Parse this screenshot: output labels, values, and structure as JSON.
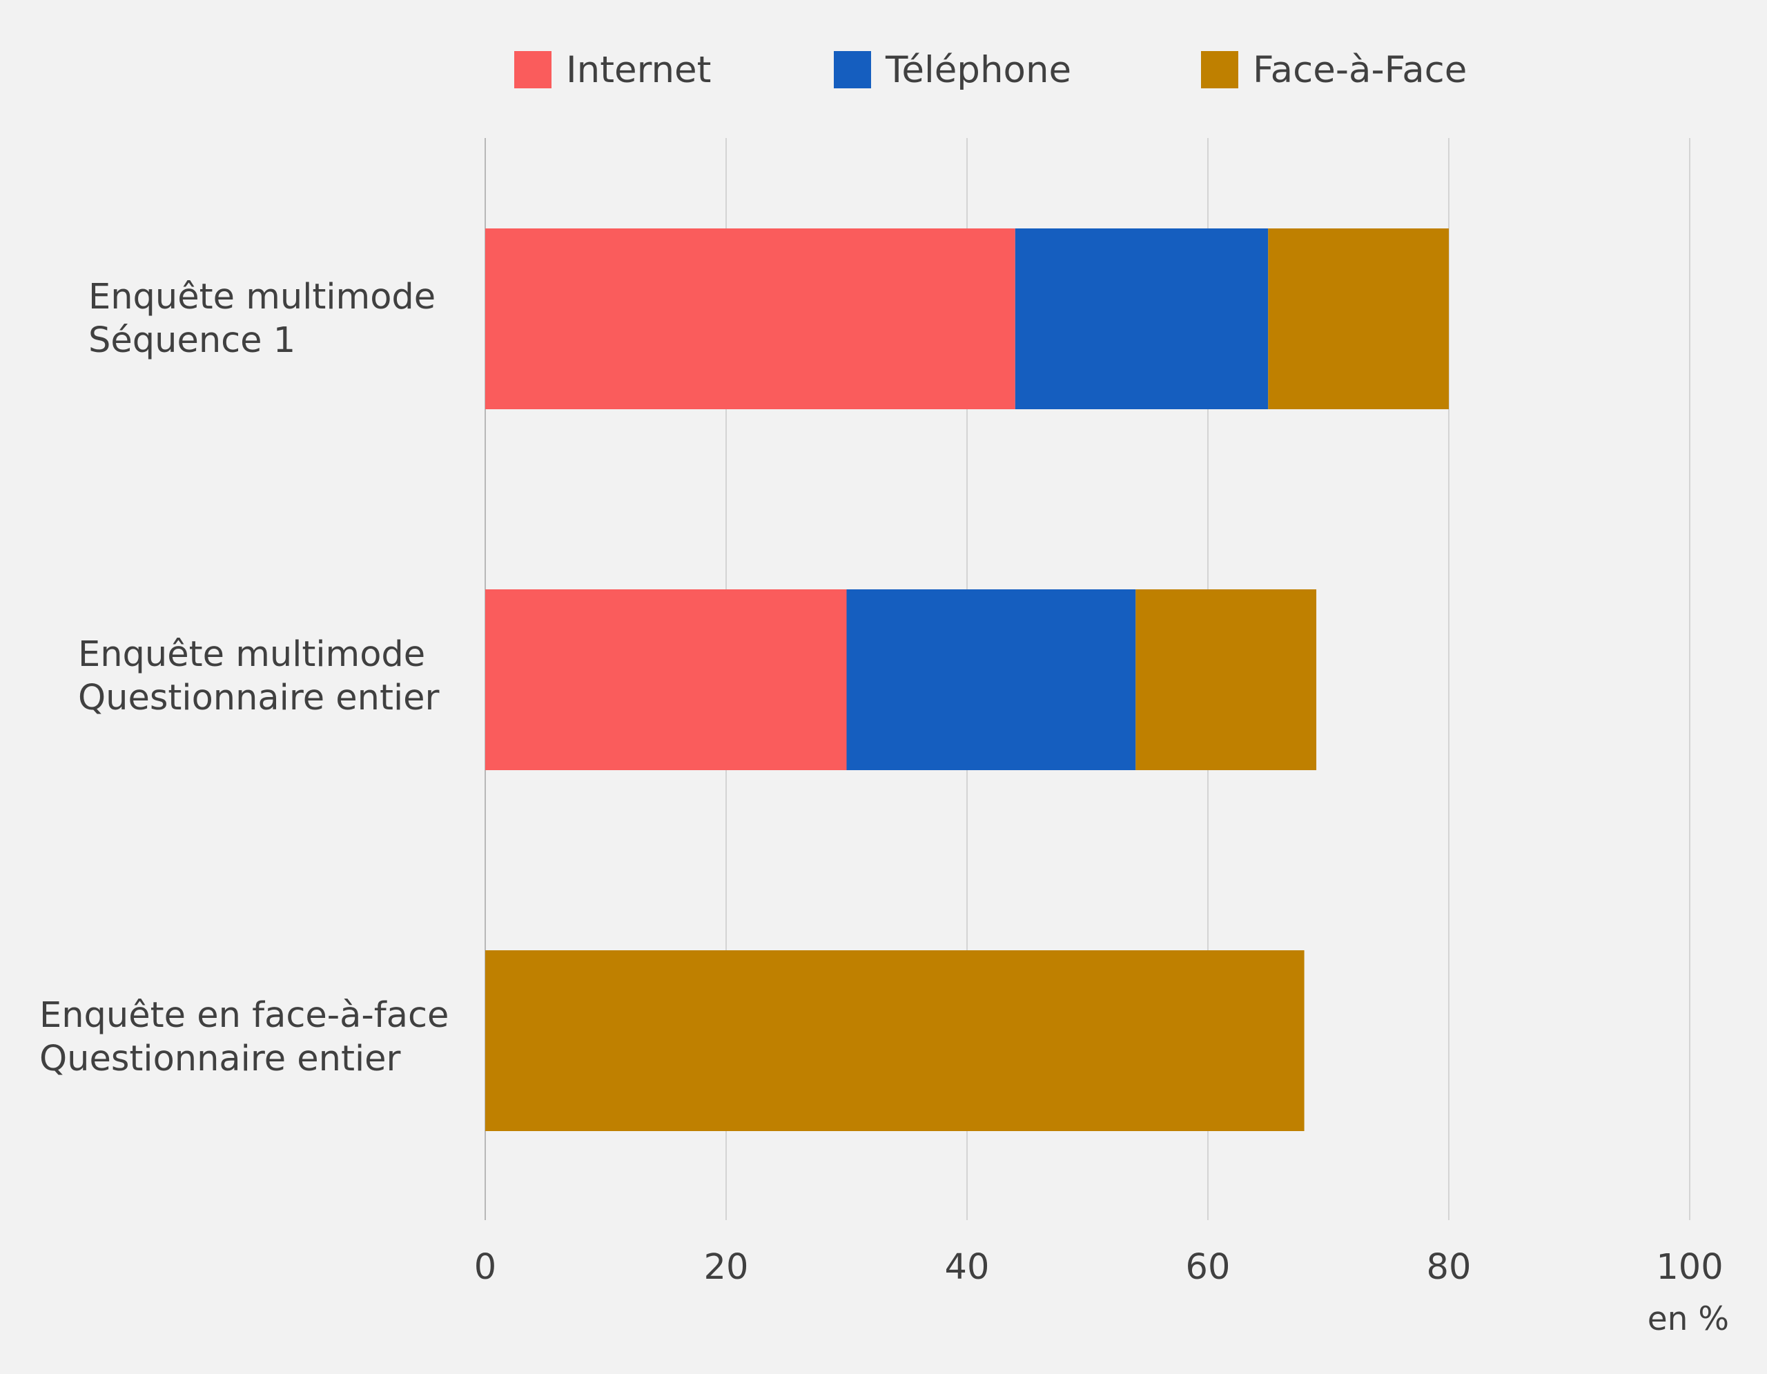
{
  "chart_data": {
    "type": "bar",
    "orientation": "horizontal",
    "stacked": true,
    "categories": [
      [
        "Enquête multimode",
        "Séquence 1"
      ],
      [
        "Enquête multimode",
        "Questionnaire entier"
      ],
      [
        "Enquête en face-à-face",
        "Questionnaire entier"
      ]
    ],
    "series": [
      {
        "name": "Internet",
        "color": "#fa5c5c",
        "values": [
          44,
          30,
          0
        ]
      },
      {
        "name": "Téléphone",
        "color": "#155ebf",
        "values": [
          21,
          24,
          0
        ]
      },
      {
        "name": "Face-à-Face",
        "color": "#bf8000",
        "values": [
          15,
          15,
          68
        ]
      }
    ],
    "xlim": [
      0,
      100
    ],
    "xticks": [
      0,
      20,
      40,
      60,
      80,
      100
    ],
    "xlabel": "en %",
    "grid": true,
    "legend_position": "top"
  }
}
